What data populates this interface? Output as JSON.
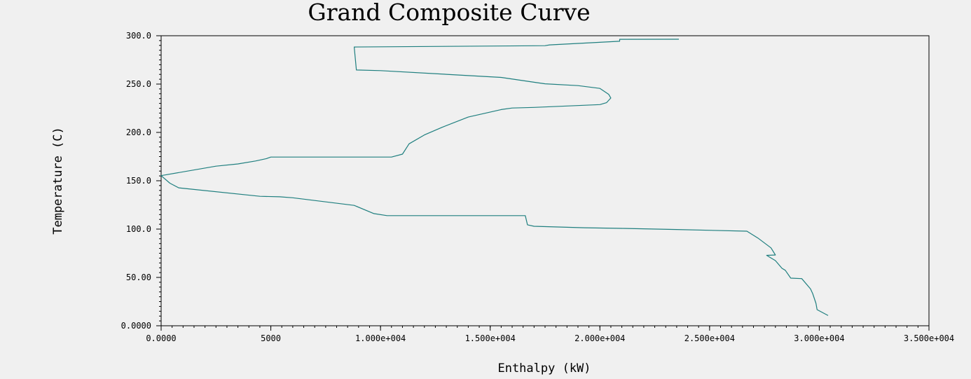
{
  "chart_data": {
    "type": "line",
    "title": "Grand Composite Curve",
    "xlabel": "Enthalpy (kW)",
    "ylabel": "Temperature (C)",
    "xlim": [
      0,
      35000
    ],
    "ylim": [
      0,
      300
    ],
    "x_tick_values": [
      0,
      5000,
      10000,
      15000,
      20000,
      25000,
      30000,
      35000
    ],
    "x_tick_labels": [
      "0.0000",
      "5000",
      "1.000e+004",
      "1.500e+004",
      "2.000e+004",
      "2.500e+004",
      "3.000e+004",
      "3.500e+004"
    ],
    "y_tick_values": [
      0,
      50,
      100,
      150,
      200,
      250,
      300
    ],
    "y_tick_labels": [
      "0.0000",
      "50.00",
      "100.0",
      "150.0",
      "200.0",
      "250.0",
      "300.0"
    ],
    "grid": false,
    "legend": "none",
    "series": [
      {
        "color": "#1f7f7f",
        "x": [
          30400,
          29900,
          29850,
          29700,
          29600,
          29200,
          28700,
          28450,
          28300,
          28000,
          27600,
          28000,
          27800,
          27200,
          26700,
          23500,
          21000,
          19300,
          17000,
          16700,
          16600,
          10300,
          9700,
          8800,
          6000,
          5400,
          4500,
          800,
          400,
          0,
          2500,
          3500,
          4300,
          4800,
          5000,
          10500,
          11000,
          11300,
          12000,
          12800,
          14000,
          15500,
          16000,
          17000,
          20000,
          20300,
          20500,
          20400,
          20000,
          19000,
          17500,
          17000,
          15500,
          10000,
          8900,
          8800,
          17500,
          17700,
          20900,
          20900,
          23600
        ],
        "y": [
          10.6,
          16.7,
          23.2,
          33.3,
          38.1,
          48.8,
          49.3,
          57.4,
          59.4,
          67.4,
          72.8,
          73.2,
          80.6,
          90.8,
          97.8,
          99.6,
          100.7,
          101.4,
          102.9,
          104.4,
          113.9,
          113.9,
          116.0,
          124.5,
          132.4,
          133.4,
          133.9,
          142.7,
          147.5,
          155.3,
          165.1,
          167.4,
          170.4,
          172.9,
          174.5,
          174.5,
          177.5,
          188.2,
          197.4,
          205.2,
          215.9,
          223.6,
          225.2,
          225.9,
          228.8,
          230.7,
          235.6,
          239.4,
          245.5,
          248.4,
          250.3,
          251.9,
          256.9,
          263.9,
          264.6,
          288.3,
          289.7,
          290.5,
          294.3,
          296.3,
          296.4
        ]
      }
    ]
  }
}
